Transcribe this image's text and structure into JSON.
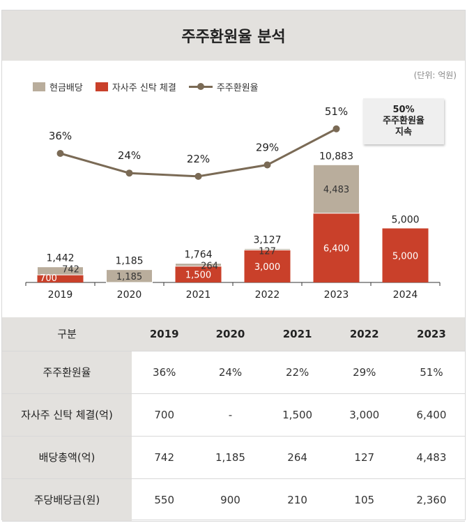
{
  "title": "주주환원율 분석",
  "unit_note": "(단위: 억원)",
  "legend": {
    "cash": "현금배당",
    "buyback": "자사주 신탁 체결",
    "ratio": "주주환원율"
  },
  "note_box": {
    "line1": "50%",
    "line2": "주주환원율",
    "line3": "지속"
  },
  "colors": {
    "cash": "#b9ad9c",
    "buyback": "#c9402a",
    "ratio": "#7a6a55",
    "header_bg": "#e3e1de"
  },
  "chart_data": {
    "type": "bar",
    "stacked": true,
    "categories": [
      "2019",
      "2020",
      "2021",
      "2022",
      "2023",
      "2024"
    ],
    "series": [
      {
        "name": "자사주 신탁 체결",
        "values": [
          700,
          0,
          1500,
          3000,
          6400,
          5000
        ]
      },
      {
        "name": "현금배당",
        "values": [
          742,
          1185,
          264,
          127,
          4483,
          0
        ]
      }
    ],
    "buyback_labels": [
      "700",
      "",
      "1,500",
      "3,000",
      "6,400",
      "5,000"
    ],
    "cash_labels": [
      "742",
      "1,185",
      "264",
      "127",
      "4,483",
      ""
    ],
    "totals": [
      1442,
      1185,
      1764,
      3127,
      10883,
      5000
    ],
    "total_labels": [
      "1,442",
      "1,185",
      "1,764",
      "3,127",
      "10,883",
      "5,000"
    ],
    "line": {
      "name": "주주환원율",
      "values": [
        36,
        24,
        22,
        29,
        51
      ],
      "labels": [
        "36%",
        "24%",
        "22%",
        "29%",
        "51%"
      ]
    },
    "legend_position": "top-left"
  },
  "table": {
    "header": [
      "구분",
      "2019",
      "2020",
      "2021",
      "2022",
      "2023"
    ],
    "rows": [
      [
        "주주환원율",
        "36%",
        "24%",
        "22%",
        "29%",
        "51%"
      ],
      [
        "자사주 신탁 체결(억)",
        "700",
        "-",
        "1,500",
        "3,000",
        "6,400"
      ],
      [
        "배당총액(억)",
        "742",
        "1,185",
        "264",
        "127",
        "4,483"
      ],
      [
        "주당배당금(원)",
        "550",
        "900",
        "210",
        "105",
        "2,360"
      ]
    ]
  }
}
